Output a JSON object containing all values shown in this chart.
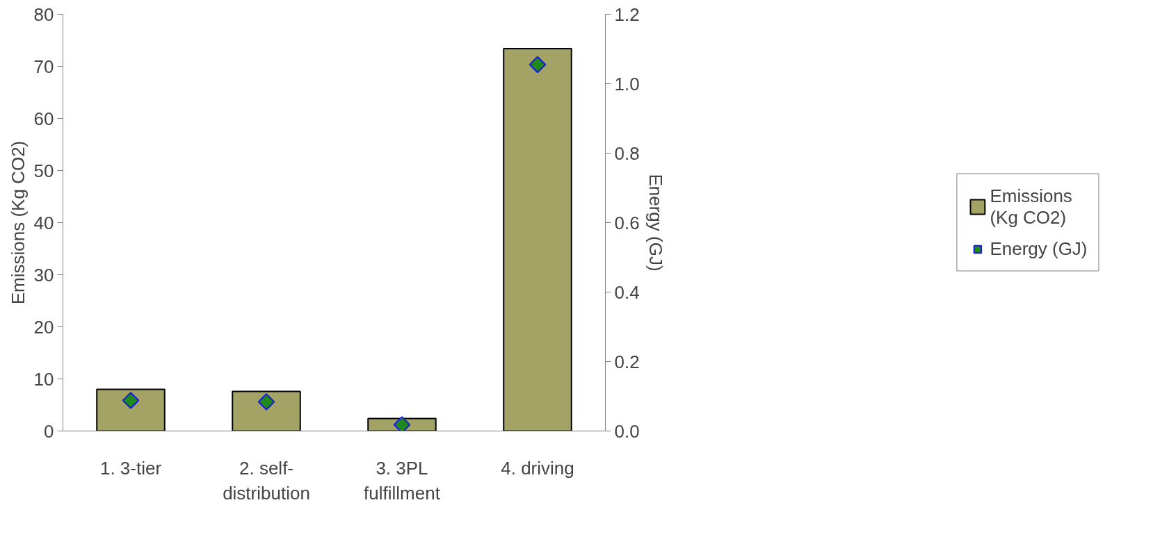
{
  "chart_data": {
    "type": "bar",
    "categories": [
      "1. 3-tier",
      "2. self-distribution",
      "3. 3PL fulfillment",
      "4. driving"
    ],
    "series": [
      {
        "name": "Emissions (Kg CO2)",
        "color": "#a3a366",
        "values": [
          8.0,
          7.6,
          2.4,
          73.4
        ]
      },
      {
        "name": "Energy (GJ)",
        "type": "scatter",
        "axis": "y2",
        "color": "#1e8a1e",
        "marker": "diamond",
        "values": [
          0.088,
          0.084,
          0.018,
          1.055
        ]
      }
    ],
    "ylabel": "Emissions (Kg CO2)",
    "y2label": "Energy (GJ)",
    "ylim": [
      0,
      80
    ],
    "yticks": [
      0,
      10,
      20,
      30,
      40,
      50,
      60,
      70,
      80
    ],
    "y2lim": [
      0,
      1.2
    ],
    "y2ticks": [
      {
        "value": 0,
        "label": "0.0"
      },
      {
        "value": 0.2,
        "label": "0.2"
      },
      {
        "value": 0.4,
        "label": "0.4"
      },
      {
        "value": 0.6,
        "label": "0.6"
      },
      {
        "value": 0.8,
        "label": "0.8"
      },
      {
        "value": 1.0,
        "label": "1.0"
      },
      {
        "value": 1.2,
        "label": "1.2"
      }
    ],
    "legend": "right"
  }
}
